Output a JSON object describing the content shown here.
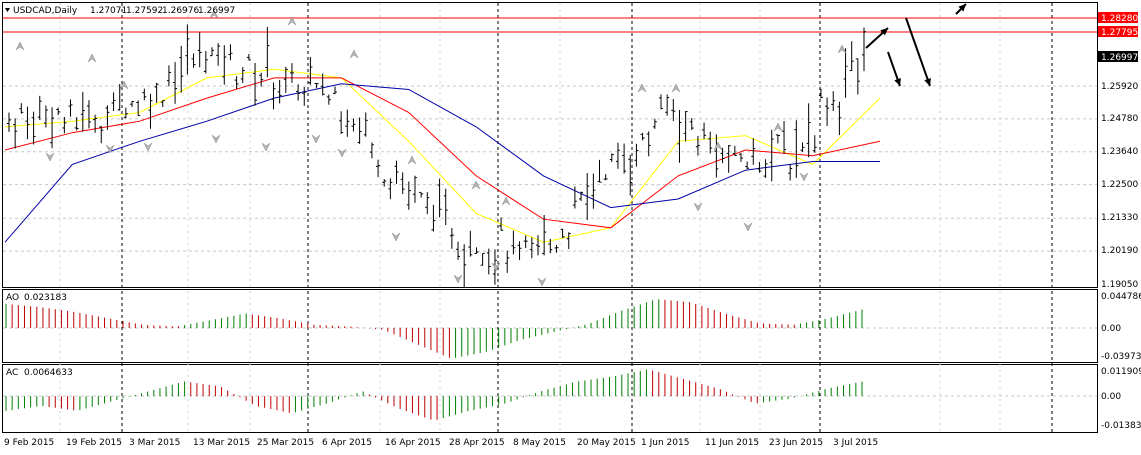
{
  "main": {
    "symbol_header": "USDCAD,Daily",
    "ohlc": [
      "1.27071",
      "1.27592",
      "1.26976",
      "1.26997"
    ],
    "price_ticks": [
      "1.28280",
      "1.27795",
      "1.26997",
      "1.25920",
      "1.24780",
      "1.23640",
      "1.22500",
      "1.21330",
      "1.20190",
      "1.19050"
    ]
  },
  "ao": {
    "label": "AO",
    "value": "0.023183",
    "ticks": [
      "0.044786",
      "0.00",
      "-0.039737"
    ]
  },
  "ac": {
    "label": "AC",
    "value": "0.0064633",
    "ticks": [
      "0.0119095",
      "0.00",
      "-0.0138303"
    ]
  },
  "date_labels": [
    "9 Feb 2015",
    "19 Feb 2015",
    "3 Mar 2015",
    "13 Mar 2015",
    "25 Mar 2015",
    "6 Apr 2015",
    "16 Apr 2015",
    "28 Apr 2015",
    "8 May 2015",
    "20 May 2015",
    "1 Jun 2015",
    "11 Jun 2015",
    "23 Jun 2015",
    "3 Jul 2015"
  ],
  "colors": {
    "up": "#008000",
    "down": "#c00000",
    "price_label_bg": "#ff0000",
    "current_price_bg": "#000000",
    "ma_fast": "#ffff00",
    "ma_mid": "#ff0000",
    "ma_slow": "#0000aa"
  },
  "chart_data": [
    {
      "type": "ohlc",
      "title": "USDCAD,Daily",
      "ylim": [
        1.1905,
        1.2828
      ],
      "horizontal_levels": [
        1.2828,
        1.27795
      ],
      "current_price": 1.26997,
      "x": [
        "9 Feb 2015",
        "19 Feb 2015",
        "3 Mar 2015",
        "13 Mar 2015",
        "25 Mar 2015",
        "6 Apr 2015",
        "16 Apr 2015",
        "28 Apr 2015",
        "8 May 2015",
        "20 May 2015",
        "1 Jun 2015",
        "11 Jun 2015",
        "23 Jun 2015",
        "3 Jul 2015"
      ],
      "close_approx": [
        1.25,
        1.247,
        1.255,
        1.27,
        1.262,
        1.255,
        1.225,
        1.205,
        1.2,
        1.225,
        1.25,
        1.232,
        1.238,
        1.27
      ],
      "series": [
        {
          "name": "fast MA",
          "color": "#ffff00",
          "values": [
            1.245,
            1.247,
            1.25,
            1.262,
            1.265,
            1.262,
            1.24,
            1.215,
            1.205,
            1.21,
            1.24,
            1.242,
            1.232,
            1.255
          ]
        },
        {
          "name": "mid MA",
          "color": "#ff0000",
          "values": [
            1.237,
            1.243,
            1.247,
            1.255,
            1.262,
            1.262,
            1.25,
            1.228,
            1.213,
            1.21,
            1.228,
            1.237,
            1.235,
            1.24
          ]
        },
        {
          "name": "slow MA",
          "color": "#0000aa",
          "values": [
            1.205,
            1.232,
            1.24,
            1.247,
            1.255,
            1.26,
            1.258,
            1.245,
            1.228,
            1.217,
            1.22,
            1.23,
            1.233,
            1.233
          ]
        }
      ]
    },
    {
      "type": "bar",
      "title": "AO 0.023183",
      "ylim": [
        -0.039737,
        0.044786
      ],
      "values": [
        0.03,
        0.026,
        0.02,
        0.012,
        0.004,
        0.002,
        0.01,
        0.018,
        0.012,
        0.004,
        0.002,
        -0.002,
        -0.02,
        -0.038,
        -0.03,
        -0.015,
        -0.005,
        0.005,
        0.022,
        0.036,
        0.032,
        0.018,
        0.006,
        0.004,
        0.012,
        0.023
      ]
    },
    {
      "type": "bar",
      "title": "AC 0.0064633",
      "ylim": [
        -0.0138303,
        0.0119095
      ],
      "values": [
        -0.006,
        -0.004,
        -0.006,
        -0.002,
        0.002,
        0.006,
        0.004,
        -0.004,
        -0.007,
        -0.003,
        0.002,
        -0.005,
        -0.01,
        -0.006,
        -0.003,
        0.002,
        0.006,
        0.008,
        0.011,
        0.007,
        0.003,
        -0.003,
        -0.001,
        0.003,
        0.006
      ]
    }
  ]
}
